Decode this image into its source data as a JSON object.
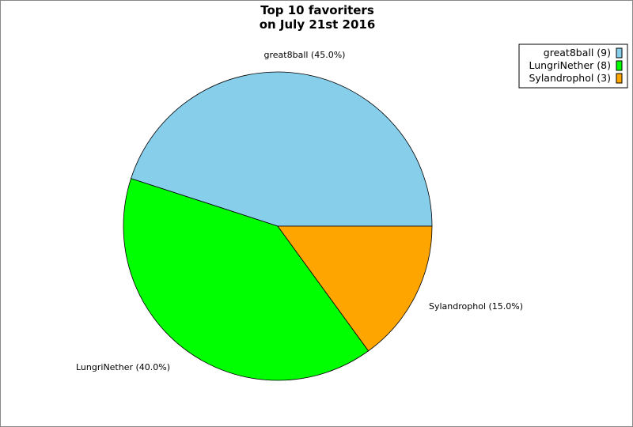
{
  "chart_data": {
    "type": "pie",
    "title": [
      "Top 10 favoriters",
      "on July 21st 2016"
    ],
    "slices": [
      {
        "label": "great8ball",
        "count": 9,
        "percent": 45.0,
        "color": "#87ceeb",
        "slice_label": "great8ball (45.0%)",
        "legend_label": "great8ball (9)"
      },
      {
        "label": "LungriNether",
        "count": 8,
        "percent": 40.0,
        "color": "#00ff00",
        "slice_label": "LungriNether (40.0%)",
        "legend_label": "LungriNether (8)"
      },
      {
        "label": "Sylandrophol",
        "count": 3,
        "percent": 15.0,
        "color": "#ffa500",
        "slice_label": "Sylandrophol (15.0%)",
        "legend_label": "Sylandrophol (3)"
      }
    ],
    "start_angle_deg": 0,
    "direction": "counterclockwise",
    "legend_position": "top-right"
  }
}
